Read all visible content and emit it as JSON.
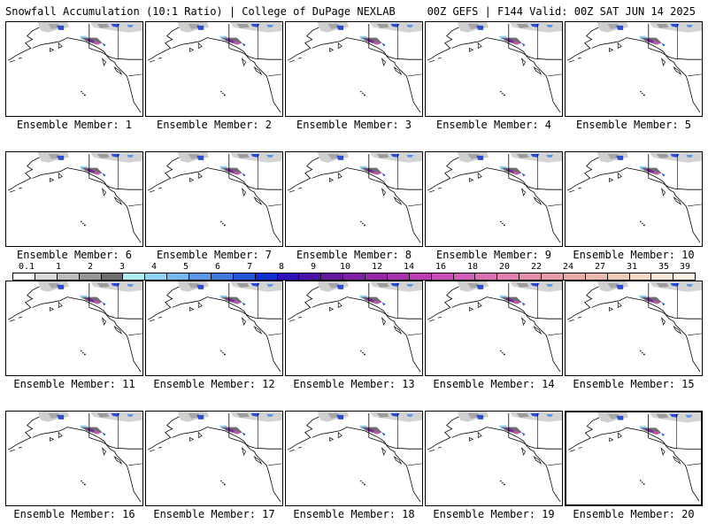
{
  "header": {
    "left": "Snowfall Accumulation (10:1 Ratio) | College of DuPage NEXLAB",
    "right": "00Z GEFS | F144 Valid: 00Z SAT JUN 14 2025"
  },
  "members": [
    {
      "label": "Ensemble Member: 1"
    },
    {
      "label": "Ensemble Member: 2"
    },
    {
      "label": "Ensemble Member: 3"
    },
    {
      "label": "Ensemble Member: 4"
    },
    {
      "label": "Ensemble Member: 5"
    },
    {
      "label": "Ensemble Member: 6"
    },
    {
      "label": "Ensemble Member: 7"
    },
    {
      "label": "Ensemble Member: 8"
    },
    {
      "label": "Ensemble Member: 9"
    },
    {
      "label": "Ensemble Member: 10"
    },
    {
      "label": "Ensemble Member: 11"
    },
    {
      "label": "Ensemble Member: 12"
    },
    {
      "label": "Ensemble Member: 13"
    },
    {
      "label": "Ensemble Member: 14"
    },
    {
      "label": "Ensemble Member: 15"
    },
    {
      "label": "Ensemble Member: 16"
    },
    {
      "label": "Ensemble Member: 17"
    },
    {
      "label": "Ensemble Member: 18"
    },
    {
      "label": "Ensemble Member: 19"
    },
    {
      "label": "Ensemble Member: 20"
    }
  ],
  "colorbar": {
    "labels": [
      "0.1",
      "1",
      "2",
      "3",
      "4",
      "5",
      "6",
      "7",
      "8",
      "9",
      "10",
      "12",
      "14",
      "16",
      "18",
      "20",
      "22",
      "24",
      "27",
      "31",
      "35",
      "39"
    ],
    "colors": [
      "#ffffff",
      "#d9d9d9",
      "#bdbdbd",
      "#969696",
      "#6e6e6e",
      "#aeeef0",
      "#8fd3f5",
      "#74b8ee",
      "#5a98e6",
      "#3e79dd",
      "#2456d6",
      "#0f2fd0",
      "#2c12b8",
      "#4a14a8",
      "#66189f",
      "#7f1fa3",
      "#9627a8",
      "#aa31ad",
      "#bd3eb4",
      "#cc4fb9",
      "#d45fb9",
      "#db6fb5",
      "#e07ead",
      "#e38da8",
      "#e59ca6",
      "#e8aba8",
      "#ebbaaf",
      "#efcab9",
      "#f3d9c6",
      "#f7e6d5",
      "#fbf1e5"
    ]
  }
}
